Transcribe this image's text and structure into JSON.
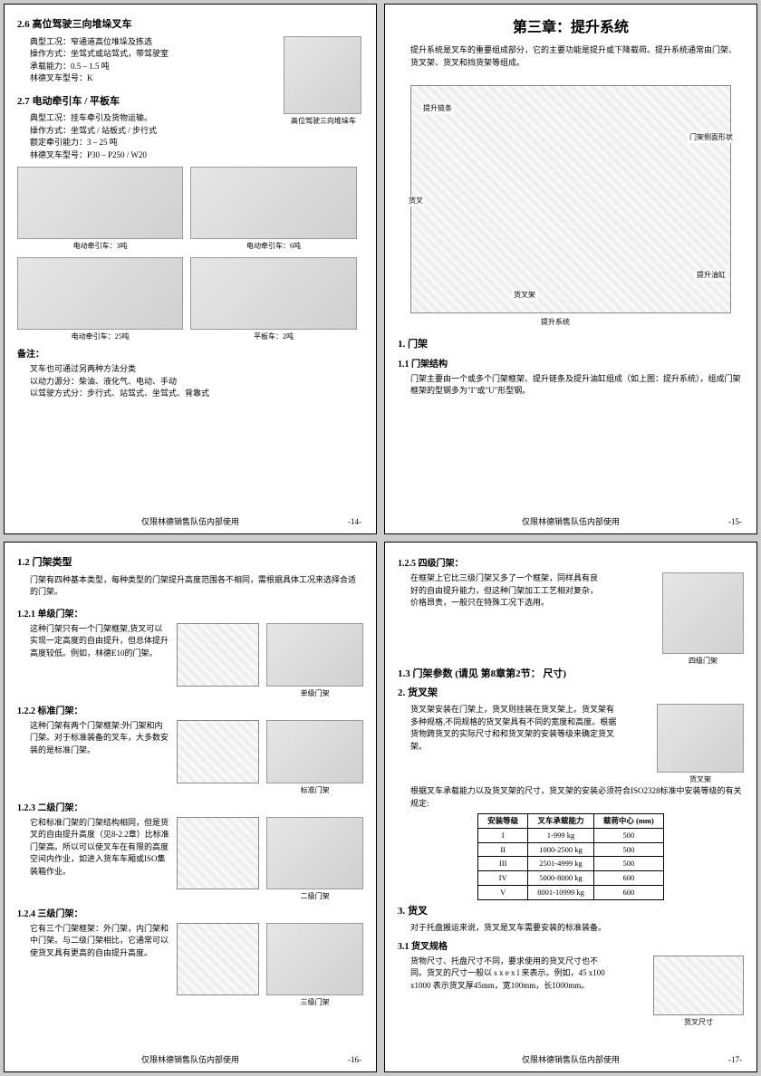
{
  "footer": "仅限林德销售队伍内部使用",
  "p14": {
    "num": "-14-",
    "s26": {
      "title": "2.6 高位驾驶三向堆垛叉车",
      "l1": "典型工况：窄通道高位堆垛及拣选",
      "l2": "操作方式：坐驾式或站驾式，带驾驶室",
      "l3": "承载能力：0.5 – 1.5 吨",
      "l4": "林德叉车型号：K",
      "cap": "高位驾驶三向堆垛车"
    },
    "s27": {
      "title": "2.7 电动牵引车 / 平板车",
      "l1": "典型工况：挂车牵引及货物运输。",
      "l2": "操作方式：坐驾式 / 站板式 / 步行式",
      "l3": "额定牵引能力：3 – 25 吨",
      "l4": "林德叉车型号：P30 – P250 / W20"
    },
    "caps": {
      "a": "电动牵引车：3吨",
      "b": "电动牵引车：6吨",
      "c": "电动牵引车：25吨",
      "d": "平板车：2吨"
    },
    "note_h": "备注：",
    "note1": "叉车也可通过另两种方法分类",
    "note2": "以动力源分：柴油、液化气、电动、手动",
    "note3": "以驾驶方式分：步行式、站驾式、坐驾式、背靠式"
  },
  "p15": {
    "num": "-15-",
    "chapter": "第三章：提升系统",
    "intro": "提升系统是叉车的重要组成部分，它的主要功能是提升或下降载荷。提升系统通常由门架、货叉架、货叉和挡货架等组成。",
    "labels": {
      "chain": "提升链条",
      "prof": "门架侧面形状",
      "fork": "货叉",
      "carriage": "货叉架",
      "cyl": "提升油缸",
      "sys": "提升系统"
    },
    "s1": "1. 门架",
    "s11": "1.1 门架结构",
    "s11_body": "门架主要由一个或多个门架框架、提升链条及提升油缸组成（如上图：提升系统），组成门架框架的型钢多为\"I\"或\"U\"形型钢。"
  },
  "p16": {
    "num": "-16-",
    "s12": "1.2 门架类型",
    "s12_body": "门架有四种基本类型，每种类型的门架提升高度范围各不相同，需根据具体工况来选择合适的门架。",
    "s121": "1.2.1 单级门架：",
    "s121_body": "这种门架只有一个门架框架,货叉可以实现一定高度的自由提升，但总体提升高度较低。例如，林德E10的门架。",
    "cap1": "单级门架",
    "s122": "1.2.2 标准门架：",
    "s122_body": "这种门架有两个门架框架:外门架和内门架。对于标准装备的叉车，大多数安装的是标准门架。",
    "cap2": "标准门架",
    "s123": "1.2.3 二级门架：",
    "s123_body": "它和标准门架的门架结构相同，但是货叉的自由提升高度（见8-2.2章）比标准门架高。所以可以使叉车在有限的高度空间内作业，如进入货车车厢或ISO集装箱作业。",
    "cap3": "二级门架",
    "s124": "1.2.4 三级门架：",
    "s124_body": "它有三个门架框架：外门架，内门架和中门架。与二级门架相比，它通常可以使货叉具有更高的自由提升高度。",
    "cap4": "三级门架"
  },
  "p17": {
    "num": "-17-",
    "s125": "1.2.5 四级门架：",
    "s125_body": "在框架上它比三级门架又多了一个框架，同样具有良好的自由提升能力，但这种门架加工工艺相对复杂，价格昂贵，一般只在特殊工况下选用。",
    "cap5": "四级门架",
    "s13": "1.3 门架参数 (请见 第8章第2节： 尺寸)",
    "s2": "2. 货叉架",
    "s2_body": "货叉架安装在门架上，货叉则挂装在货叉架上。货叉架有多种规格,不同规格的货叉架具有不同的宽度和高度。根据货物跨货叉的实际尺寸和和货叉架的安装等级来确定货叉架。",
    "cap_fc": "货叉架",
    "s2_body2": "根据叉车承载能力以及货叉架的尺寸，货叉架的安装必须符合ISO2328标准中安装等级的有关规定:",
    "table": {
      "head": [
        "安装等级",
        "叉车承载能力",
        "载荷中心 (mm)"
      ],
      "rows": [
        [
          "I",
          "1-999 kg",
          "500"
        ],
        [
          "II",
          "1000-2500 kg",
          "500"
        ],
        [
          "III",
          "2501-4999 kg",
          "500"
        ],
        [
          "IV",
          "5000-8000 kg",
          "600"
        ],
        [
          "V",
          "8001-10999 kg",
          "600"
        ]
      ]
    },
    "s3": "3. 货叉",
    "s3_body": "对于托盘搬运来说，货叉是叉车需要安装的标准装备。",
    "s31": "3.1 货叉规格",
    "s31_body": "货物尺寸、托盘尺寸不同，要求使用的货叉尺寸也不同。货叉的尺寸一般以 s x e x l 来表示。例如，45 x100 x1000 表示货叉厚45mm，宽100mm，长1000mm。",
    "cap_fs": "货叉尺寸"
  }
}
